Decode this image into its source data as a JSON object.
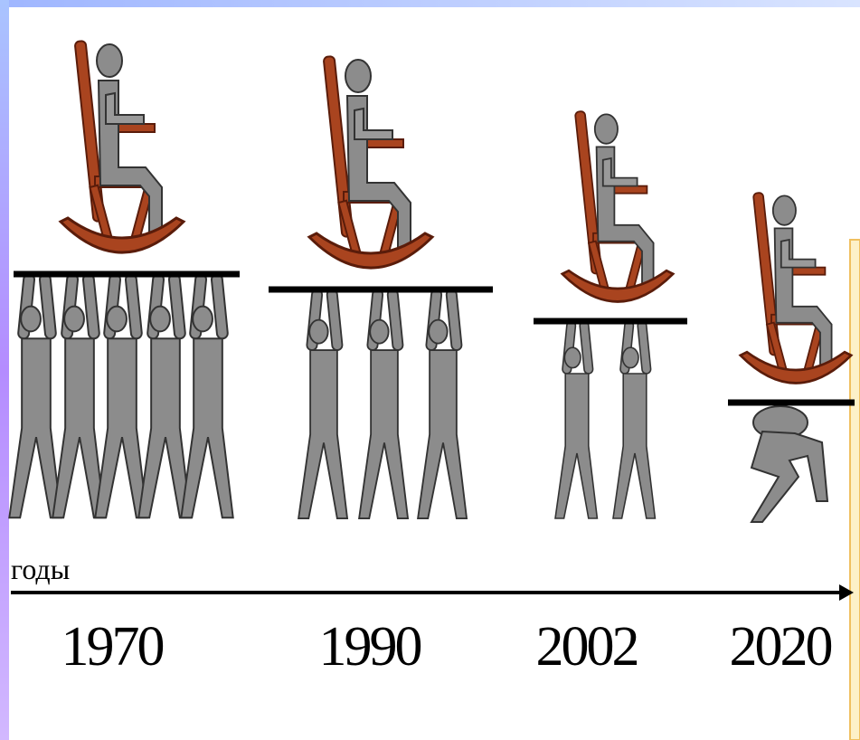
{
  "axis_label": "годы",
  "years": [
    "1970",
    "1990",
    "2002",
    "2020"
  ]
}
